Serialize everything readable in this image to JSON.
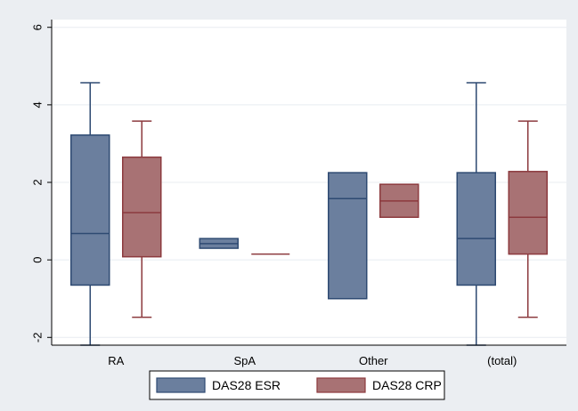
{
  "chart_data": {
    "type": "box",
    "categories": [
      "RA",
      "SpA",
      "Other",
      "(total)"
    ],
    "ylim": [
      -2.2,
      6.2
    ],
    "yticks": [
      -2,
      0,
      2,
      4,
      6
    ],
    "ytick_labels": [
      "-2",
      "0",
      "2",
      "4",
      "6"
    ],
    "grid": true,
    "legend_position": "bottom",
    "series": [
      {
        "name": "DAS28 ESR",
        "color": "#6b7f9e",
        "stroke": "#2e4a72",
        "boxes": [
          {
            "min": -2.2,
            "q1": -0.65,
            "median": 0.68,
            "q3": 3.22,
            "max": 4.57
          },
          {
            "min": 0.3,
            "q1": 0.3,
            "median": 0.42,
            "q3": 0.55,
            "max": 0.55
          },
          {
            "min": -1.0,
            "q1": -1.0,
            "median": 1.58,
            "q3": 2.25,
            "max": 2.25
          },
          {
            "min": -2.2,
            "q1": -0.65,
            "median": 0.55,
            "q3": 2.25,
            "max": 4.57
          }
        ]
      },
      {
        "name": "DAS28 CRP",
        "color": "#a87274",
        "stroke": "#8c3a3e",
        "boxes": [
          {
            "min": -1.48,
            "q1": 0.08,
            "median": 1.22,
            "q3": 2.65,
            "max": 3.58
          },
          {
            "min": 0.15,
            "q1": 0.15,
            "median": 0.15,
            "q3": 0.15,
            "max": 0.15
          },
          {
            "min": 1.1,
            "q1": 1.1,
            "median": 1.52,
            "q3": 1.95,
            "max": 1.95
          },
          {
            "min": -1.48,
            "q1": 0.15,
            "median": 1.1,
            "q3": 2.28,
            "max": 3.58
          }
        ]
      }
    ]
  }
}
